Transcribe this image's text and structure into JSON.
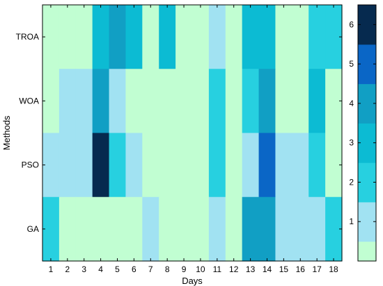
{
  "chart_data": {
    "type": "heatmap",
    "title": "",
    "xlabel": "Days",
    "ylabel": "Methods",
    "x_categories": [
      "1",
      "2",
      "3",
      "4",
      "5",
      "6",
      "7",
      "8",
      "9",
      "10",
      "11",
      "12",
      "13",
      "14",
      "15",
      "16",
      "17",
      "18"
    ],
    "y_categories": [
      "TROA",
      "WOA",
      "PSO",
      "GA"
    ],
    "values": [
      [
        0,
        0,
        0,
        3,
        4,
        3,
        0,
        3,
        0,
        0,
        1,
        0,
        3,
        3,
        0,
        0,
        2,
        2
      ],
      [
        0,
        1,
        1,
        4,
        1,
        0,
        0,
        0,
        0,
        0,
        2,
        0,
        2,
        4,
        0,
        0,
        3,
        0
      ],
      [
        1,
        1,
        1,
        6,
        2,
        1,
        0,
        0,
        0,
        0,
        2,
        0,
        1,
        5,
        1,
        1,
        2,
        0
      ],
      [
        2,
        0,
        0,
        0,
        0,
        0,
        1,
        0,
        0,
        0,
        1,
        0,
        4,
        4,
        1,
        1,
        1,
        2
      ]
    ],
    "colorbar": {
      "ticks": [
        "1",
        "2",
        "3",
        "4",
        "5",
        "6"
      ],
      "range": [
        0,
        6.5
      ],
      "colors": [
        "#c1fed2",
        "#a1e2f2",
        "#27d0e0",
        "#0cbbd3",
        "#119fc4",
        "#0a66c6",
        "#062a4f"
      ]
    }
  }
}
